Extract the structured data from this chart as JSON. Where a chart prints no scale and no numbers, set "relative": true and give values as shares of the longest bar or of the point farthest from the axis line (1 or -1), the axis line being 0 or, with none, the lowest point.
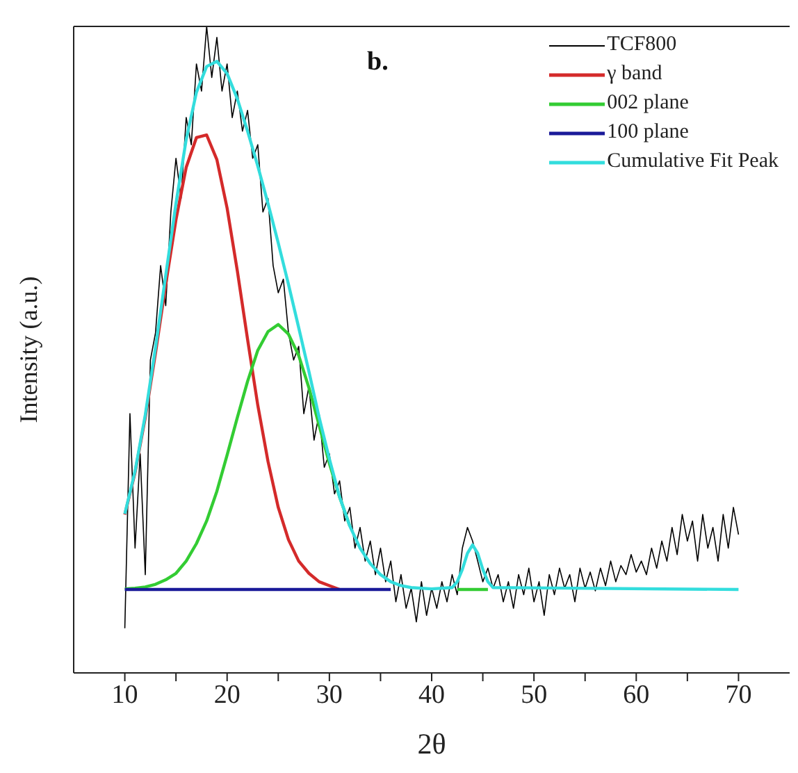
{
  "chart_data": {
    "type": "line",
    "relative": true,
    "xlabel": "2θ",
    "ylabel": "Intensity (a.u.)",
    "annotations": [
      "b."
    ],
    "legend": "top right",
    "marker": "none",
    "line_style": "solid",
    "xlim": [
      5,
      75
    ],
    "xticks": [
      10,
      {
        "value": 15,
        "label": null
      },
      20,
      {
        "value": 25,
        "label": null
      },
      30,
      {
        "value": 35,
        "label": null
      },
      40,
      {
        "value": 45,
        "label": null
      },
      50,
      {
        "value": 55,
        "label": null
      },
      60,
      {
        "value": 65,
        "label": null
      },
      70
    ],
    "series": [
      {
        "name": "TCF800",
        "color": "#000000",
        "x": [
          10,
          10.5,
          11,
          11.5,
          12,
          12.5,
          13,
          13.5,
          14,
          14.5,
          15,
          15.5,
          16,
          16.5,
          17,
          17.5,
          18,
          18.5,
          19,
          19.5,
          20,
          20.5,
          21,
          21.5,
          22,
          22.5,
          23,
          23.5,
          24,
          24.5,
          25,
          25.5,
          26,
          26.5,
          27,
          27.5,
          28,
          28.5,
          29,
          29.5,
          30,
          30.5,
          31,
          31.5,
          32,
          32.5,
          33,
          33.5,
          34,
          34.5,
          35,
          35.5,
          36,
          36.5,
          37,
          37.5,
          38,
          38.5,
          39,
          39.5,
          40,
          40.5,
          41,
          41.5,
          42,
          42.5,
          43,
          43.5,
          44,
          44.5,
          45,
          45.5,
          46,
          46.5,
          47,
          47.5,
          48,
          48.5,
          49,
          49.5,
          50,
          50.5,
          51,
          51.5,
          52,
          52.5,
          53,
          53.5,
          54,
          54.5,
          55,
          55.5,
          56,
          56.5,
          57,
          57.5,
          58,
          58.5,
          59,
          59.5,
          60,
          60.5,
          61,
          61.5,
          62,
          62.5,
          63,
          63.5,
          64,
          64.5,
          65,
          65.5,
          66,
          66.5,
          67,
          67.5,
          68,
          68.5,
          69,
          69.5,
          70
        ],
        "values": [
          0.069,
          0.401,
          0.193,
          0.339,
          0.152,
          0.484,
          0.526,
          0.63,
          0.568,
          0.713,
          0.796,
          0.734,
          0.859,
          0.817,
          0.942,
          0.9,
          1,
          0.921,
          0.983,
          0.9,
          0.942,
          0.859,
          0.9,
          0.838,
          0.87,
          0.796,
          0.817,
          0.713,
          0.734,
          0.63,
          0.588,
          0.609,
          0.526,
          0.484,
          0.505,
          0.401,
          0.443,
          0.36,
          0.401,
          0.318,
          0.339,
          0.277,
          0.297,
          0.235,
          0.256,
          0.193,
          0.225,
          0.173,
          0.204,
          0.152,
          0.193,
          0.141,
          0.173,
          0.11,
          0.152,
          0.1,
          0.131,
          0.079,
          0.141,
          0.089,
          0.131,
          0.1,
          0.141,
          0.11,
          0.152,
          0.121,
          0.193,
          0.225,
          0.204,
          0.173,
          0.141,
          0.162,
          0.131,
          0.152,
          0.11,
          0.141,
          0.1,
          0.152,
          0.121,
          0.162,
          0.11,
          0.141,
          0.089,
          0.152,
          0.121,
          0.162,
          0.131,
          0.152,
          0.11,
          0.162,
          0.131,
          0.156,
          0.127,
          0.162,
          0.135,
          0.173,
          0.141,
          0.166,
          0.152,
          0.183,
          0.156,
          0.173,
          0.152,
          0.193,
          0.162,
          0.204,
          0.173,
          0.225,
          0.183,
          0.245,
          0.204,
          0.235,
          0.173,
          0.245,
          0.193,
          0.225,
          0.173,
          0.245,
          0.193,
          0.256,
          0.214
        ]
      },
      {
        "name": "γ band",
        "color": "#d42a2a",
        "x": [
          10,
          11,
          12,
          13,
          14,
          15,
          16,
          17,
          18,
          19,
          20,
          21,
          22,
          23,
          24,
          25,
          26,
          27,
          28,
          29,
          30,
          31
        ],
        "values": [
          0.245,
          0.31,
          0.395,
          0.495,
          0.601,
          0.701,
          0.782,
          0.828,
          0.832,
          0.794,
          0.719,
          0.622,
          0.516,
          0.414,
          0.327,
          0.256,
          0.206,
          0.173,
          0.154,
          0.141,
          0.135,
          0.129
        ]
      },
      {
        "name": "002 plane",
        "color": "#33cc33",
        "x": [
          10,
          11,
          12,
          13,
          14,
          15,
          16,
          17,
          18,
          19,
          20,
          21,
          22,
          23,
          24,
          25,
          26,
          27,
          28,
          29,
          30,
          31,
          32,
          33,
          42.5,
          45.5
        ],
        "values": [
          0.13,
          0.131,
          0.133,
          0.137,
          0.144,
          0.154,
          0.173,
          0.2,
          0.235,
          0.281,
          0.337,
          0.395,
          0.451,
          0.499,
          0.528,
          0.539,
          0.524,
          0.491,
          0.441,
          0.383,
          0.324,
          0.272,
          0.227,
          null,
          0.129,
          0.129
        ]
      },
      {
        "name": "100 plane",
        "color": "#1a1a99",
        "x": [
          10,
          36
        ],
        "values": [
          0.129,
          0.129
        ]
      },
      {
        "name": "Cumulative Fit Peak",
        "color": "#33dddd",
        "x": [
          10,
          11,
          12,
          13,
          14,
          15,
          16,
          17,
          18,
          19,
          20,
          21,
          22,
          23,
          24,
          25,
          26,
          27,
          28,
          29,
          30,
          31,
          32,
          33,
          34,
          35,
          36,
          37,
          38,
          40,
          42,
          42.5,
          43,
          43.5,
          44,
          44.5,
          45,
          45.5,
          46,
          70
        ],
        "values": [
          0.246,
          0.312,
          0.399,
          0.503,
          0.615,
          0.726,
          0.825,
          0.898,
          0.938,
          0.946,
          0.927,
          0.888,
          0.838,
          0.784,
          0.726,
          0.665,
          0.601,
          0.534,
          0.466,
          0.395,
          0.331,
          0.272,
          0.227,
          0.193,
          0.169,
          0.152,
          0.141,
          0.135,
          0.132,
          0.13,
          0.132,
          0.141,
          0.16,
          0.185,
          0.198,
          0.185,
          0.16,
          0.141,
          0.132,
          0.129
        ]
      }
    ]
  }
}
